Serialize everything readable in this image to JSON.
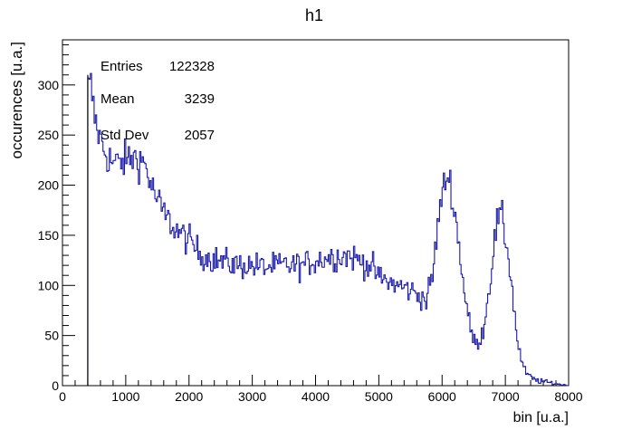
{
  "chart_data": {
    "type": "histogram",
    "title": "h1",
    "xlabel": "bin [u.a.]",
    "ylabel": "occurences [u.a.]",
    "xlim": [
      0,
      8000
    ],
    "ylim": [
      0,
      345
    ],
    "x_ticks": [
      "0",
      "1000",
      "2000",
      "3000",
      "4000",
      "5000",
      "6000",
      "7000",
      "8000"
    ],
    "y_ticks": [
      "0",
      "50",
      "100",
      "150",
      "200",
      "250",
      "300"
    ],
    "stats": [
      {
        "label": "Entries",
        "value": "122328"
      },
      {
        "label": "Mean",
        "value": "3239"
      },
      {
        "label": "Std Dev",
        "value": "2057"
      }
    ],
    "line_color": "#1a1aa8",
    "envelope": {
      "x": [
        400,
        450,
        500,
        600,
        700,
        800,
        900,
        1000,
        1100,
        1200,
        1300,
        1400,
        1500,
        1600,
        1700,
        1800,
        1900,
        2000,
        2200,
        2500,
        2800,
        3000,
        3200,
        3500,
        3800,
        4000,
        4200,
        4500,
        4700,
        4900,
        5000,
        5200,
        5400,
        5600,
        5750,
        5850,
        5950,
        6050,
        6100,
        6150,
        6250,
        6350,
        6450,
        6550,
        6650,
        6750,
        6850,
        6900,
        6950,
        7050,
        7150,
        7200,
        7300,
        7400,
        7500,
        7700,
        7900,
        8000
      ],
      "y": [
        295,
        300,
        270,
        245,
        230,
        222,
        222,
        225,
        228,
        226,
        222,
        200,
        185,
        172,
        163,
        155,
        150,
        145,
        130,
        124,
        120,
        120,
        118,
        120,
        120,
        125,
        128,
        130,
        125,
        118,
        108,
        102,
        98,
        92,
        85,
        110,
        170,
        205,
        210,
        195,
        150,
        95,
        55,
        40,
        55,
        100,
        155,
        170,
        165,
        130,
        70,
        40,
        15,
        8,
        5,
        3,
        1,
        0
      ]
    }
  }
}
